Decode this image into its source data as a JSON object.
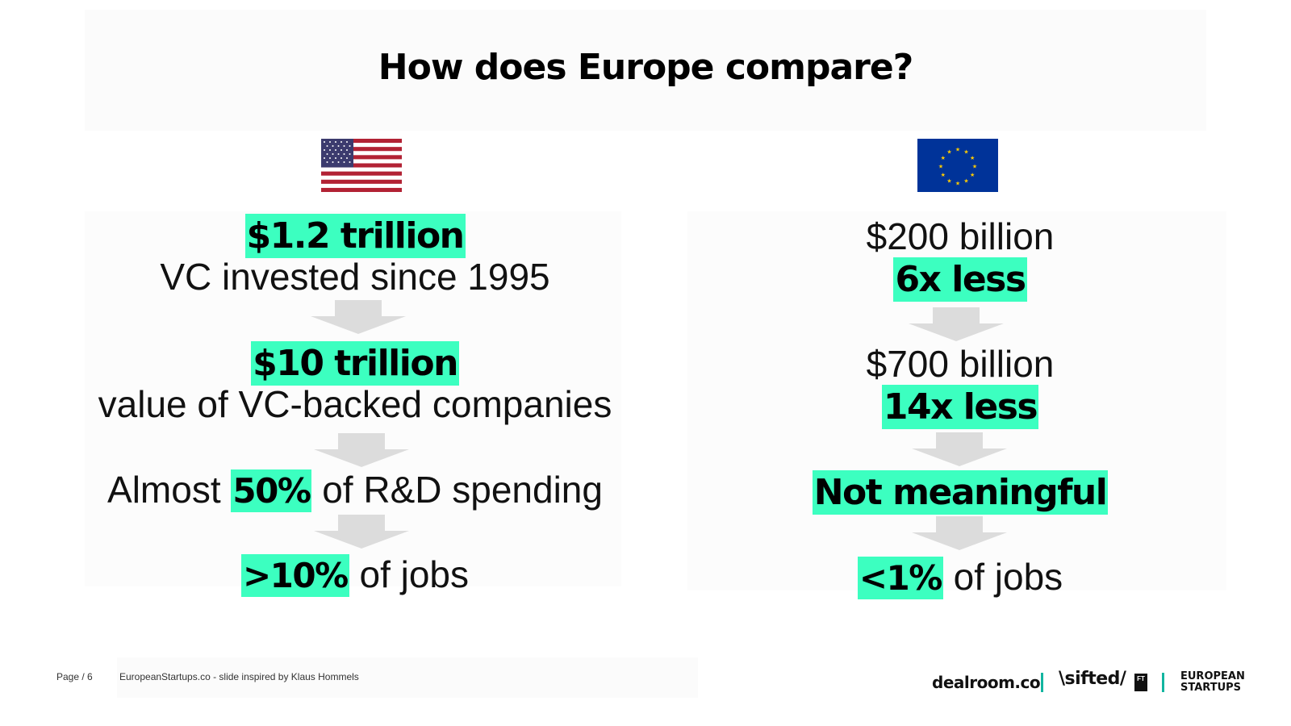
{
  "slide": {
    "title": "How does Europe compare?"
  },
  "us": {
    "flag_icon": "us-flag-icon",
    "rows": [
      {
        "highlight": "$1.2 trillion"
      },
      {
        "text": "VC invested since 1995"
      },
      {
        "highlight": "$10 trillion"
      },
      {
        "text": "value of VC-backed companies"
      },
      {
        "prefix": "Almost ",
        "highlight": "50%",
        "suffix": " of R&D spending"
      },
      {
        "highlight": ">10%",
        "suffix": " of jobs"
      }
    ]
  },
  "eu": {
    "flag_icon": "eu-flag-icon",
    "rows": [
      {
        "text": "$200 billion"
      },
      {
        "highlight": "6x less"
      },
      {
        "text": "$700 billion"
      },
      {
        "highlight": "14x less"
      },
      {
        "highlight": "Not meaningful"
      },
      {
        "highlight": "<1%",
        "suffix": " of jobs"
      }
    ]
  },
  "footer": {
    "page": "Page / 6",
    "credit": "EuropeanStartups.co - slide inspired by Klaus Hommels",
    "logos": {
      "dealroom": "dealroom.co",
      "sifted": "\\sifted/",
      "ft": "FT",
      "european_startups": [
        "EUROPEAN",
        "STARTUPS"
      ]
    }
  },
  "colors": {
    "highlight": "#3cffc0",
    "arrow": "#dcdcdc",
    "separator": "#12b5a0"
  }
}
